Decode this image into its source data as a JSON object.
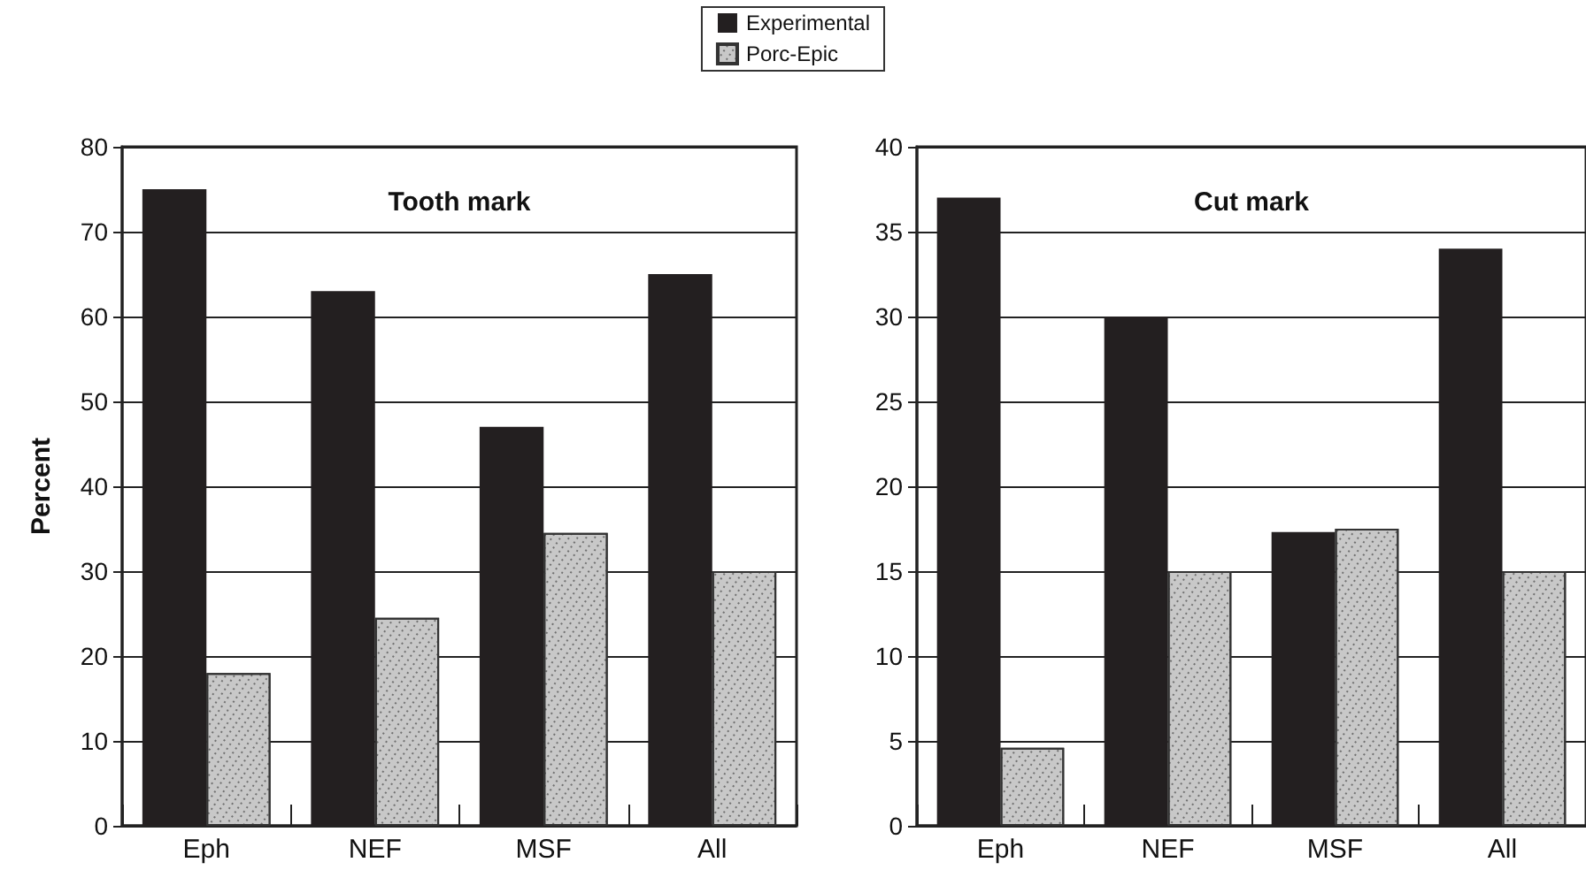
{
  "chart_data": [
    {
      "type": "bar",
      "title": "Tooth mark",
      "ylabel": "Percent",
      "categories": [
        "Eph",
        "NEF",
        "MSF",
        "All"
      ],
      "series": [
        {
          "name": "Experimental",
          "color": "#231f20",
          "values": [
            75,
            63,
            47,
            65
          ]
        },
        {
          "name": "Porc-Epic",
          "color": "#c8c8c8",
          "values": [
            18,
            24.5,
            34.5,
            30
          ]
        }
      ],
      "ylim": [
        0,
        80
      ],
      "yticks": [
        0,
        10,
        20,
        30,
        40,
        50,
        60,
        70,
        80
      ],
      "grid": "y",
      "legend": "top"
    },
    {
      "type": "bar",
      "title": "Cut mark",
      "categories": [
        "Eph",
        "NEF",
        "MSF",
        "All"
      ],
      "series": [
        {
          "color": "#231f20",
          "values": [
            37,
            30,
            17.3,
            34
          ]
        },
        {
          "color": "#c8c8c8",
          "values": [
            4.6,
            15,
            17.5,
            15
          ]
        }
      ],
      "ylim": [
        0,
        40
      ],
      "yticks": [
        0,
        5,
        10,
        15,
        20,
        25,
        30,
        35,
        40
      ],
      "grid": "y"
    }
  ]
}
